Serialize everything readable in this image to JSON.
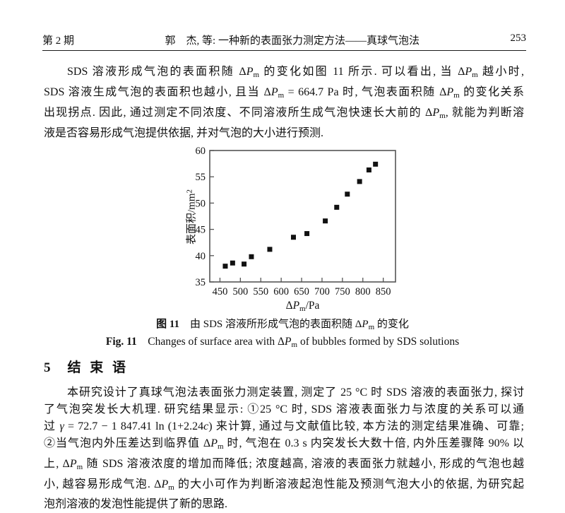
{
  "header": {
    "issue": "第 2 期",
    "title": "郭　杰, 等: 一种新的表面张力测定方法——真球气泡法",
    "page_number": "253"
  },
  "paragraph1": {
    "lines": [
      "SDS 溶液形成气泡的表面积随 Δ<i>P</i><sub>m</sub> 的变化如图 11 所示.  可以看出, 当 Δ<i>P</i><sub>m</sub> 越小时,",
      "SDS 溶液生成气泡的表面积也越小, 且当 Δ<i>P</i><sub>m</sub> = 664.7 Pa 时, 气泡表面积随 Δ<i>P</i><sub>m</sub> 的变化关系",
      "出现拐点. 因此, 通过测定不同浓度、不同溶液所生成气泡快速长大前的 Δ<i>P</i><sub>m</sub>, 就能为判断溶",
      "液是否容易形成气泡提供依据, 并对气泡的大小进行预测."
    ]
  },
  "figure": {
    "caption_zh": "<b>图 11</b>　由 SDS 溶液所形成气泡的表面积随 Δ<i>P</i><sub>m</sub> 的变化",
    "caption_en": "<b>Fig. 11</b>　Changes of surface area with Δ<i>P</i><sub>m</sub> of bubbles formed by SDS solutions"
  },
  "chart_data": {
    "type": "scatter",
    "xlabel": "ΔPm/Pa",
    "ylabel": "表面积/mm2",
    "xlabel_html": "Δ<i>P</i><sub>m</sub>/Pa",
    "ylabel_html": "表面积/mm<sup>2</sup>",
    "xlim": [
      425,
      880
    ],
    "ylim": [
      35,
      60
    ],
    "xticks": [
      450,
      500,
      550,
      600,
      650,
      700,
      750,
      800,
      850
    ],
    "yticks": [
      35,
      40,
      45,
      50,
      55,
      60
    ],
    "grid": false,
    "marker": "square",
    "marker_color": "#111111",
    "axis_color": "#555555",
    "series": [
      {
        "name": "SDS solution bubbles",
        "points": [
          {
            "x": 463,
            "y": 38.0
          },
          {
            "x": 481,
            "y": 38.6
          },
          {
            "x": 509,
            "y": 38.4
          },
          {
            "x": 527,
            "y": 39.8
          },
          {
            "x": 572,
            "y": 41.2
          },
          {
            "x": 630,
            "y": 43.5
          },
          {
            "x": 663,
            "y": 44.2
          },
          {
            "x": 708,
            "y": 46.6
          },
          {
            "x": 736,
            "y": 49.2
          },
          {
            "x": 762,
            "y": 51.7
          },
          {
            "x": 792,
            "y": 54.1
          },
          {
            "x": 815,
            "y": 56.3
          },
          {
            "x": 831,
            "y": 57.4
          }
        ]
      }
    ]
  },
  "section": {
    "number": "5",
    "title": "结 束 语"
  },
  "conclusion": {
    "lines": [
      "本研究设计了真球气泡法表面张力测定装置, 测定了 25 °C 时 SDS 溶液的表面张力, 探讨",
      "了气泡突发长大机理.  研究结果显示:  ①25 °C 时, SDS 溶液表面张力与浓度的关系可以通",
      "过 <i>γ</i> = 72.7 − 1 847.41 ln (1+2.24<i>c</i>) 来计算, 通过与文献值比较, 本方法的测定结果准确、可靠;",
      "②当气泡内外压差达到临界值 Δ<i>P</i><sub>m</sub> 时, 气泡在 0.3 s 内突发长大数十倍, 内外压差骤降 90% 以",
      "上, Δ<i>P</i><sub>m</sub> 随 SDS 溶液浓度的增加而降低; 浓度越高, 溶液的表面张力就越小, 形成的气泡也越",
      "小, 越容易形成气泡. Δ<i>P</i><sub>m</sub> 的大小可作为判断溶液起泡性能及预测气泡大小的依据, 为研究起",
      "泡剂溶液的发泡性能提供了新的思路."
    ]
  }
}
